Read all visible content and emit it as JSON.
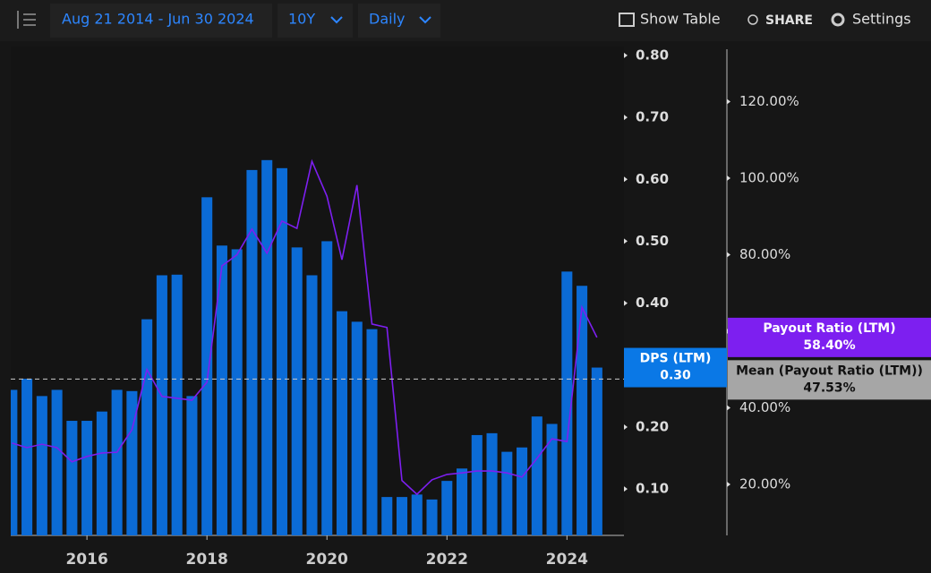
{
  "toolbar": {
    "date_range": "Aug 21 2014 - Jun 30 2024",
    "period": "10Y",
    "frequency": "Daily",
    "show_table": "Show Table",
    "share": "SHARE",
    "settings": "Settings"
  },
  "chart_data": {
    "type": "bar-line",
    "x": [
      2014.75,
      2015.0,
      2015.25,
      2015.5,
      2015.75,
      2016.0,
      2016.25,
      2016.5,
      2016.75,
      2017.0,
      2017.25,
      2017.5,
      2017.75,
      2018.0,
      2018.25,
      2018.5,
      2018.75,
      2019.0,
      2019.25,
      2019.5,
      2019.75,
      2020.0,
      2020.25,
      2020.5,
      2020.75,
      2021.0,
      2021.25,
      2021.5,
      2021.75,
      2022.0,
      2022.25,
      2022.5,
      2022.75,
      2023.0,
      2023.25,
      2023.5,
      2023.75,
      2024.0,
      2024.25,
      2024.5
    ],
    "series": [
      {
        "name": "DPS (LTM)",
        "type": "bar",
        "color": "#0b6bd6",
        "axis": "y",
        "last_label": "0.30",
        "values": [
          0.26,
          0.278,
          0.25,
          0.26,
          0.21,
          0.21,
          0.225,
          0.26,
          0.258,
          0.374,
          0.445,
          0.446,
          0.25,
          0.571,
          0.493,
          0.487,
          0.615,
          0.631,
          0.618,
          0.49,
          0.445,
          0.5,
          0.387,
          0.37,
          0.358,
          0.087,
          0.087,
          0.091,
          0.083,
          0.113,
          0.133,
          0.187,
          0.19,
          0.16,
          0.167,
          0.217,
          0.205,
          0.451,
          0.428,
          0.296
        ]
      },
      {
        "name": "Payout Ratio (LTM)",
        "type": "line",
        "color": "#7d1ff0",
        "axis": "y2",
        "last_label": "58.40%",
        "values": [
          30.8,
          29.6,
          30.5,
          29.6,
          25.9,
          27.3,
          28.2,
          28.4,
          34.3,
          50,
          43,
          42.5,
          42,
          46.7,
          77.1,
          80,
          86.7,
          80.4,
          88.8,
          86.9,
          104.4,
          95.3,
          78.7,
          98.2,
          61.9,
          61,
          21,
          17.4,
          21.2,
          22.6,
          23,
          23.5,
          23.5,
          23,
          21.9,
          26.8,
          31.9,
          31.2,
          66.3,
          58.4
        ]
      }
    ],
    "mean": {
      "name": "Mean (Payout Ratio (LTM))",
      "value": 47.53,
      "label": "47.53%",
      "axis": "y2"
    },
    "xlim": [
      2014.73,
      2024.95
    ],
    "xticks": [
      2016,
      2018,
      2020,
      2022,
      2024
    ],
    "ylim": [
      0.025,
      0.81
    ],
    "yticks": [
      {
        "value": 0.1,
        "label": "0.10"
      },
      {
        "value": 0.2,
        "label": "0.20"
      },
      {
        "value": 0.3,
        "label": "0.30"
      },
      {
        "value": 0.4,
        "label": "0.40"
      },
      {
        "value": 0.5,
        "label": "0.50"
      },
      {
        "value": 0.6,
        "label": "0.60"
      },
      {
        "value": 0.7,
        "label": "0.70"
      },
      {
        "value": 0.8,
        "label": "0.80"
      }
    ],
    "y2lim": [
      6.67,
      133.7
    ],
    "y2ticks": [
      {
        "value": 20,
        "label": "20.00%"
      },
      {
        "value": 40,
        "label": "40.00%"
      },
      {
        "value": 60,
        "label": "60.00%"
      },
      {
        "value": 80,
        "label": "80.00%"
      },
      {
        "value": 100,
        "label": "100.00%"
      },
      {
        "value": 120,
        "label": "120.00%"
      }
    ]
  }
}
